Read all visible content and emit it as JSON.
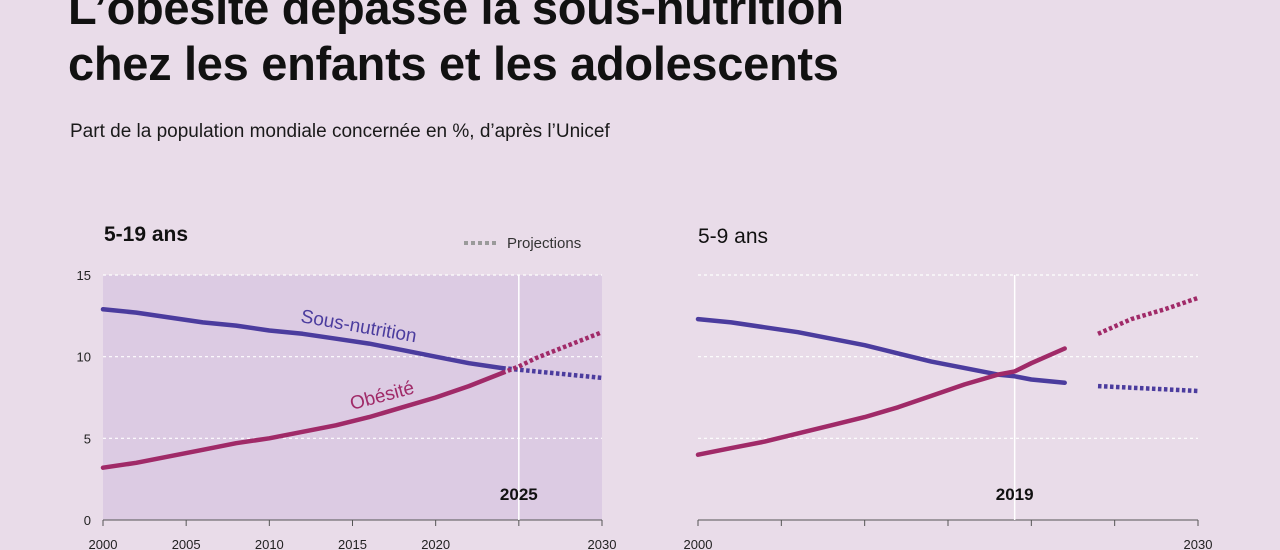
{
  "header": {
    "title_line1": "L’obésité dépasse la sous-nutrition",
    "title_line2": "chez les enfants et les adolescents",
    "subtitle": "Part de la population mondiale concernée en %, d’après l’Unicef"
  },
  "legend": {
    "projections_label": "Projections"
  },
  "colors": {
    "sous_nutrition": "#4b3c9e",
    "obesite": "#a02a68",
    "shade": "#dccbe3",
    "grid": "#ffffff",
    "marker_line": "#ffffff",
    "legend_dots": "#9a9a9a"
  },
  "chart_data": [
    {
      "type": "line",
      "title": "5-19 ans",
      "x": [
        2000,
        2002,
        2004,
        2006,
        2008,
        2010,
        2012,
        2014,
        2016,
        2018,
        2020,
        2022,
        2024,
        2025,
        2026,
        2028,
        2030
      ],
      "xlim": [
        2000,
        2030
      ],
      "ylim": [
        0,
        15
      ],
      "x_ticks": [
        "2000",
        "2005",
        "2010",
        "2015",
        "2020",
        "2030"
      ],
      "x_tick_values": [
        2000,
        2005,
        2010,
        2015,
        2020,
        2030
      ],
      "y_ticks": [
        "0",
        "5",
        "10",
        "15"
      ],
      "y_tick_values": [
        0,
        5,
        10,
        15
      ],
      "marker_year": 2025,
      "marker_label": "2025",
      "projection_start": 2024,
      "shaded_background": true,
      "series": [
        {
          "name": "Sous-nutrition",
          "values": [
            12.9,
            12.7,
            12.4,
            12.1,
            11.9,
            11.6,
            11.4,
            11.1,
            10.8,
            10.4,
            10.0,
            9.6,
            9.3,
            9.2,
            9.1,
            8.9,
            8.7
          ]
        },
        {
          "name": "Obésité",
          "values": [
            3.2,
            3.5,
            3.9,
            4.3,
            4.7,
            5.0,
            5.4,
            5.8,
            6.3,
            6.9,
            7.5,
            8.2,
            9.0,
            9.4,
            9.9,
            10.7,
            11.5
          ]
        }
      ]
    },
    {
      "type": "line",
      "title": "5-9 ans",
      "x": [
        2000,
        2002,
        2004,
        2006,
        2008,
        2010,
        2012,
        2014,
        2016,
        2018,
        2019,
        2020,
        2022,
        2024,
        2026,
        2028,
        2030
      ],
      "xlim": [
        2000,
        2030
      ],
      "ylim": [
        0,
        15
      ],
      "x_ticks": [
        "2000",
        "2030"
      ],
      "x_tick_values": [
        2000,
        2030
      ],
      "marker_year": 2019,
      "marker_label": "2019",
      "projection_start": 2023,
      "shaded_background": false,
      "series": [
        {
          "name": "Sous-nutrition",
          "values": [
            12.3,
            12.1,
            11.8,
            11.5,
            11.1,
            10.7,
            10.2,
            9.7,
            9.3,
            8.9,
            8.8,
            8.6,
            8.4,
            8.2,
            8.1,
            8.0,
            7.9
          ]
        },
        {
          "name": "Obésité",
          "values": [
            4.0,
            4.4,
            4.8,
            5.3,
            5.8,
            6.3,
            6.9,
            7.6,
            8.3,
            8.9,
            9.1,
            9.6,
            10.5,
            11.4,
            12.3,
            12.9,
            13.6
          ]
        }
      ]
    }
  ]
}
